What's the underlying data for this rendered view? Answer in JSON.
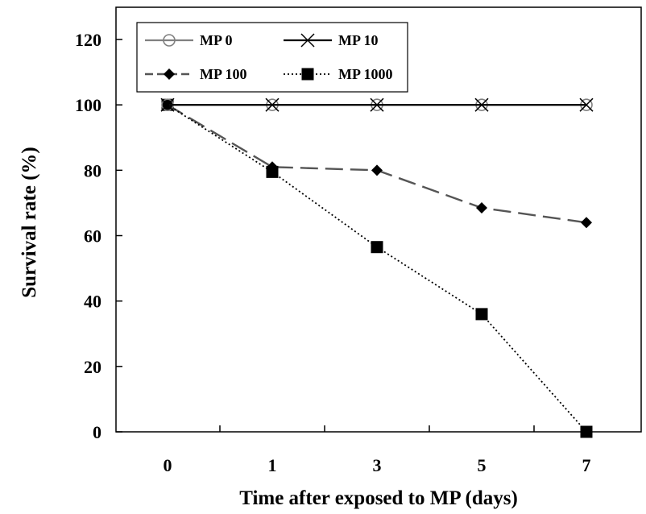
{
  "chart_data": {
    "type": "line",
    "title": "",
    "xlabel": "Time after exposed to MP (days)",
    "ylabel": "Survival rate (%)",
    "categories": [
      "0",
      "1",
      "3",
      "5",
      "7"
    ],
    "yticks": [
      "0",
      "20",
      "40",
      "60",
      "80",
      "100",
      "120"
    ],
    "ylim": [
      0,
      120
    ],
    "grid": false,
    "legend_position": "top-left",
    "series": [
      {
        "name": "MP 0",
        "values": [
          100,
          100,
          100,
          100,
          100
        ],
        "marker": "open-circle",
        "line": "solid",
        "color": "#808080"
      },
      {
        "name": "MP 10",
        "values": [
          100,
          100,
          100,
          100,
          100
        ],
        "marker": "x",
        "line": "solid",
        "color": "#000000"
      },
      {
        "name": "MP 100",
        "values": [
          100,
          81,
          80,
          68.5,
          64
        ],
        "marker": "diamond",
        "line": "dashed",
        "color": "#555555"
      },
      {
        "name": "MP 1000",
        "values": [
          100,
          79.5,
          56.5,
          36,
          0
        ],
        "marker": "square",
        "line": "dotted",
        "color": "#000000"
      }
    ]
  }
}
